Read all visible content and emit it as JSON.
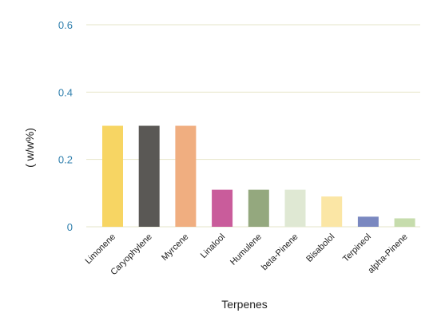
{
  "chart_data": {
    "type": "bar",
    "categories": [
      "Limonene",
      "Caryophylene",
      "Myrcene",
      "Linalool",
      "Humulene",
      "beta-Pinene",
      "Bisabolol",
      "Terpineol",
      "alpha-Pinene"
    ],
    "values": [
      0.3,
      0.3,
      0.3,
      0.11,
      0.11,
      0.11,
      0.09,
      0.03,
      0.025
    ],
    "bar_colors": [
      "#f7d563",
      "#5a5855",
      "#f0ae80",
      "#c95c9b",
      "#94a87e",
      "#dfe8d3",
      "#fbe6a5",
      "#7a88c0",
      "#c6dcac"
    ],
    "xlabel": "Terpenes",
    "ylabel": "( w/w%)",
    "ylim": [
      0,
      0.6
    ],
    "yticks": [
      {
        "value": 0,
        "label": "0"
      },
      {
        "value": 0.2,
        "label": "0.2"
      },
      {
        "value": 0.4,
        "label": "0.4"
      },
      {
        "value": 0.6,
        "label": "0.6"
      }
    ],
    "grid": true,
    "tick_label_color": "#2f7fad",
    "grid_color": "#e6e4c8"
  }
}
